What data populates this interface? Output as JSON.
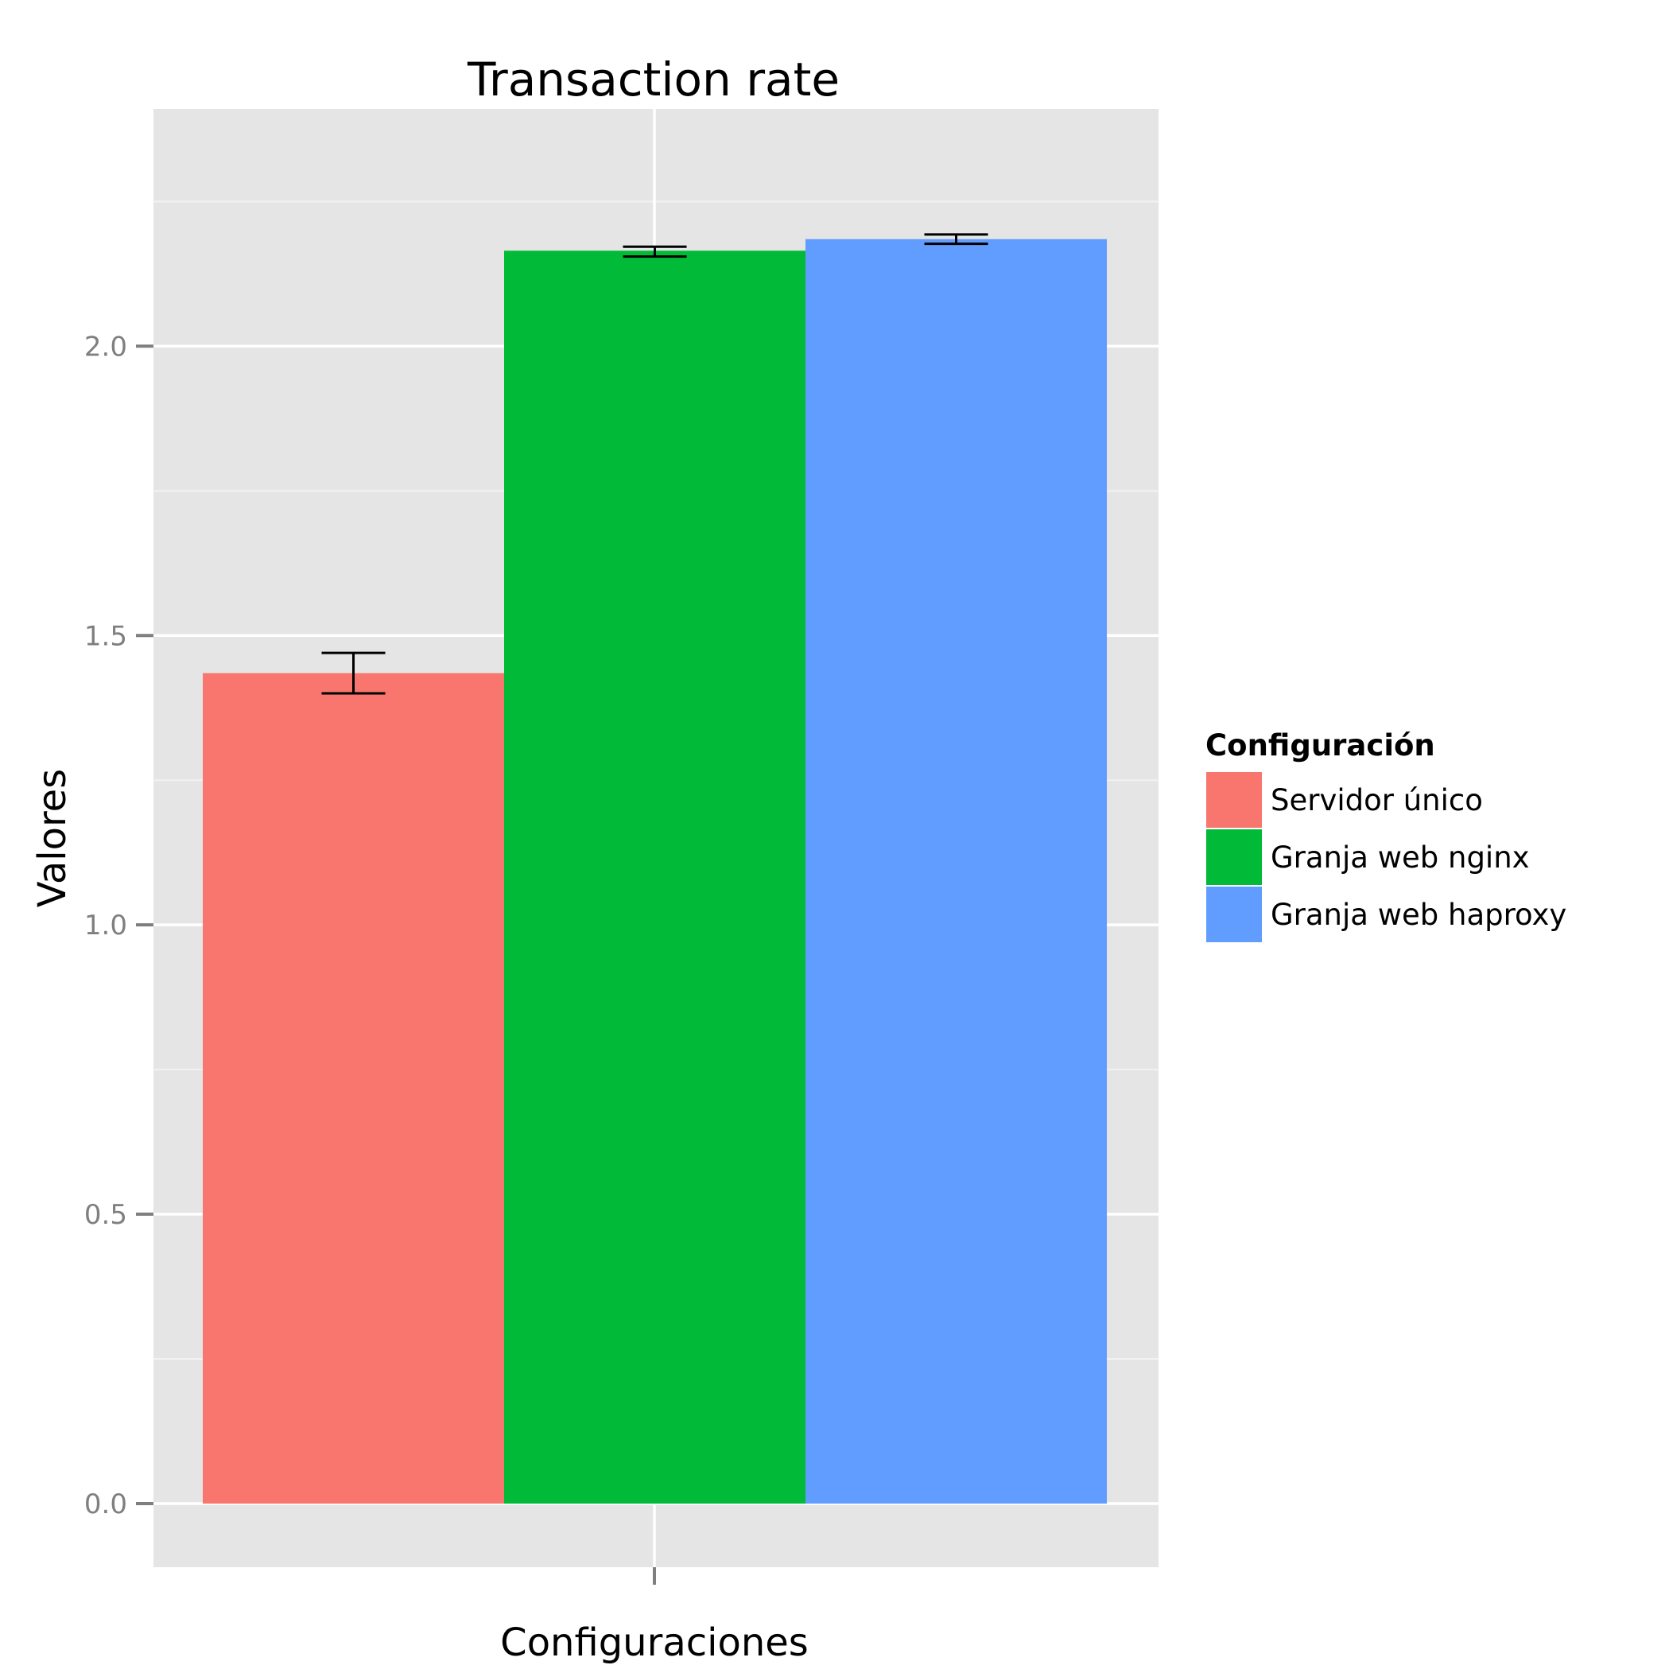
{
  "chart_data": {
    "type": "bar",
    "title": "Transaction rate",
    "xlabel": "Configuraciones",
    "ylabel": "Valores",
    "ylim": [
      -0.11,
      2.41
    ],
    "yticks": [
      0.0,
      0.5,
      1.0,
      1.5,
      2.0
    ],
    "ytick_labels": [
      "0.0",
      "0.5",
      "1.0",
      "1.5",
      "2.0"
    ],
    "grid": true,
    "legend": {
      "title": "Configuración",
      "placement": "right"
    },
    "series": [
      {
        "name": "Servidor único",
        "value": 1.435,
        "err_low": 1.4,
        "err_high": 1.47,
        "color": "#F8766D"
      },
      {
        "name": "Granja web nginx",
        "value": 2.165,
        "err_low": 2.155,
        "err_high": 2.172,
        "color": "#00BA38"
      },
      {
        "name": "Granja web haproxy",
        "value": 2.185,
        "err_low": 2.177,
        "err_high": 2.193,
        "color": "#619CFF"
      }
    ],
    "colors": {
      "panel": "#E5E5E5",
      "grid_major": "#FFFFFF",
      "grid_minor": "#F2F2F2",
      "tick": "#7f7f7f",
      "errorbar": "#000000"
    }
  }
}
